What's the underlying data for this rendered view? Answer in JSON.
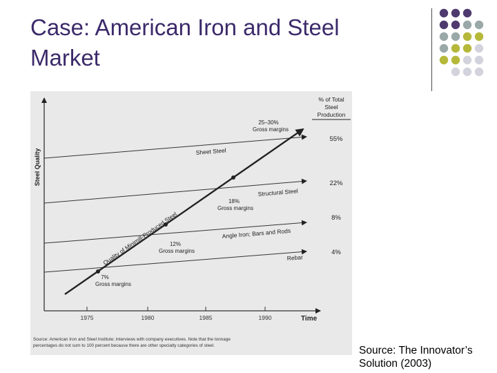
{
  "slide": {
    "title_line1": "Case: American Iron and Steel",
    "title_line2": "Market",
    "source_line1": "Source: The Innovator’s",
    "source_line2": "Solution (2003)"
  },
  "decor": {
    "dot_colors": [
      "#4e3a6e",
      "#9aa8a8",
      "#b6b83a",
      "#d3d3dd"
    ]
  },
  "chart_data": {
    "type": "line",
    "ylabel": "Steel Quality",
    "xlabel": "Time",
    "right_header": [
      "% of Total",
      "Steel",
      "Production"
    ],
    "x_ticks": [
      "1975",
      "1980",
      "1985",
      "1990"
    ],
    "series": [
      {
        "name": "Sheet Steel",
        "share": "55%"
      },
      {
        "name": "Structural Steel",
        "share": "22%"
      },
      {
        "name": "Angle Iron; Bars and Rods",
        "share": "8%"
      },
      {
        "name": "Rebar",
        "share": "4%"
      }
    ],
    "trajectory_label": "Quality of Minimill-Produced Steel",
    "margins": [
      {
        "value": "7%",
        "label": "Gross margins"
      },
      {
        "value": "12%",
        "label": "Gross margins"
      },
      {
        "value": "18%",
        "label": "Gross margins"
      },
      {
        "value": "25–30%",
        "label": "Gross margins"
      }
    ],
    "note_line1": "Source: American Iron and Steel Institute; interviews with company executives. Note that the tonnage",
    "note_line2": "percentages do not sum to 100 percent because there are other specialty categories of steel."
  }
}
